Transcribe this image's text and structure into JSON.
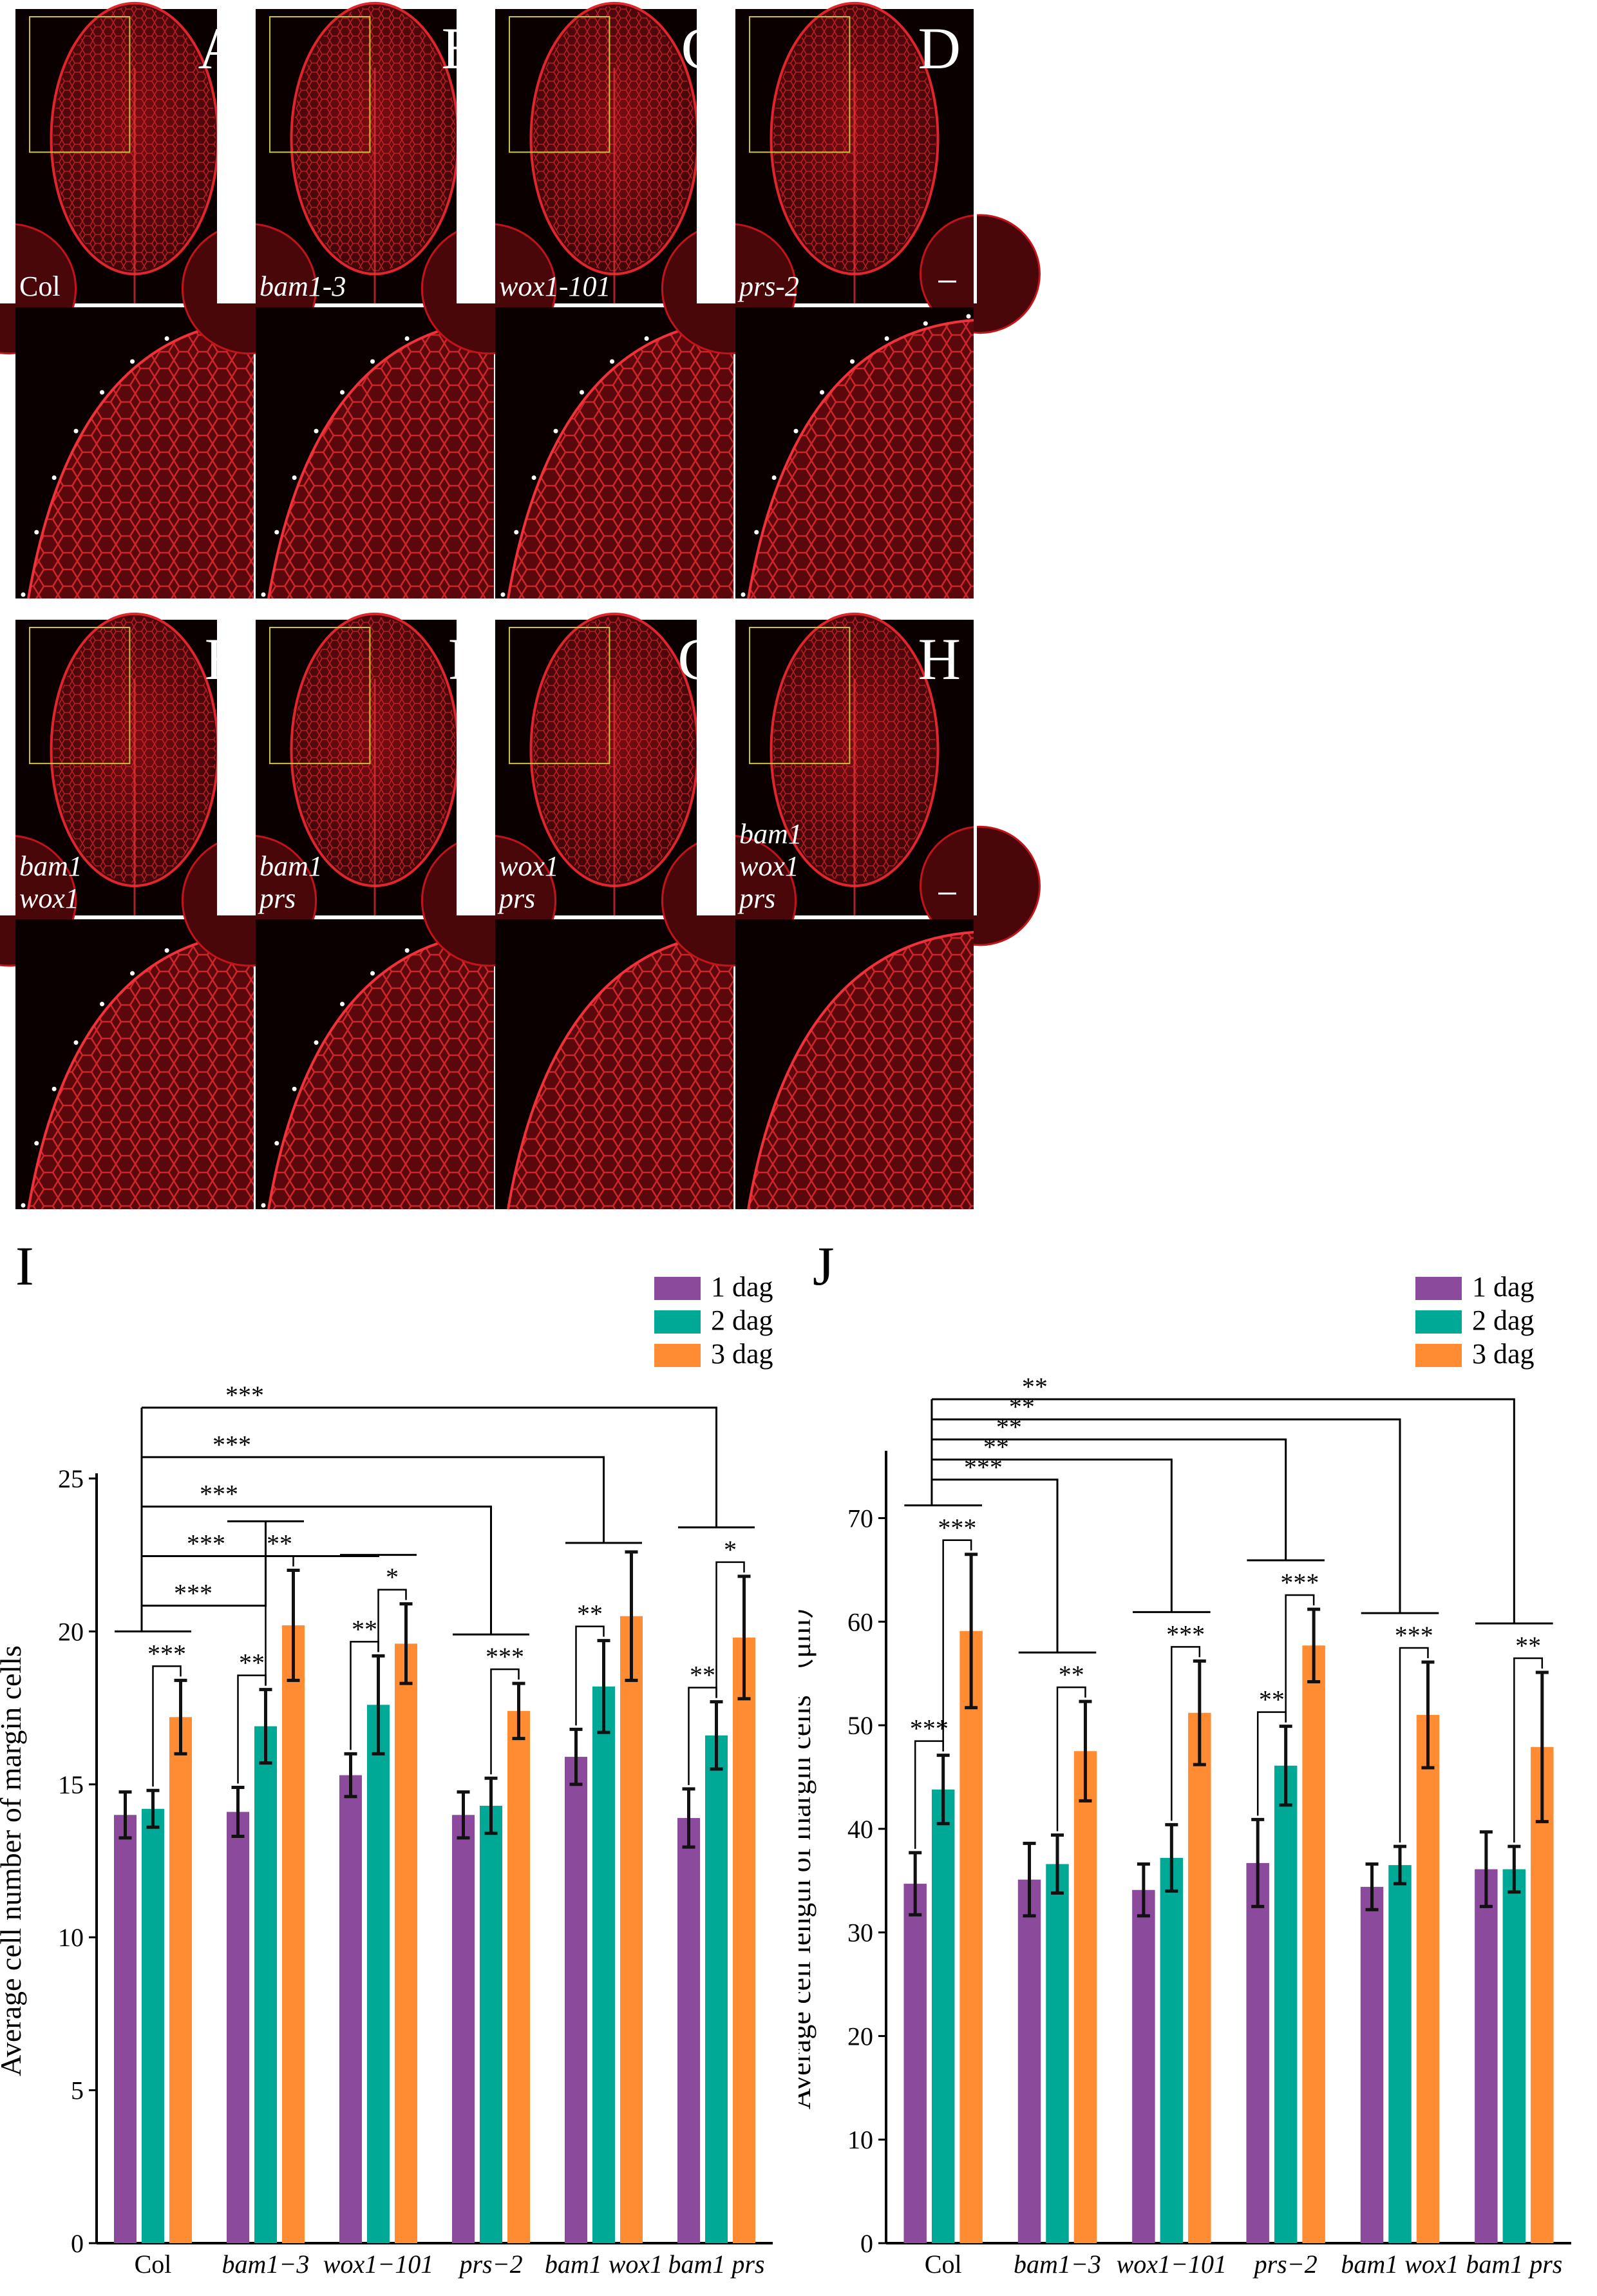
{
  "micrographs": {
    "top": [
      {
        "letter": "A",
        "label": "Col",
        "italic": false
      },
      {
        "letter": "B",
        "label": "bam1-3",
        "italic": true
      },
      {
        "letter": "C",
        "label": "wox1-101",
        "italic": true
      },
      {
        "letter": "D",
        "label": "prs-2",
        "italic": true
      }
    ],
    "bottom": [
      {
        "letter": "E",
        "lines": [
          "bam1",
          "wox1"
        ]
      },
      {
        "letter": "F",
        "lines": [
          "bam1",
          "prs"
        ]
      },
      {
        "letter": "G",
        "lines": [
          "wox1",
          "prs"
        ]
      },
      {
        "letter": "H",
        "lines": [
          "bam1",
          "wox1",
          "prs"
        ]
      }
    ]
  },
  "colors": {
    "day1": "#8b4a9c",
    "day2": "#00a896",
    "day3": "#ff8c32",
    "micro_bg": "#0b0000",
    "tissue": "#c0141a"
  },
  "chart_data": [
    {
      "panel": "I",
      "type": "bar",
      "ylabel": "Average cell number of margin cells",
      "ylim": [
        0,
        25
      ],
      "yticks": [
        0,
        5,
        10,
        15,
        20,
        25
      ],
      "categories": [
        "Col",
        "bam1−3",
        "wox1−101",
        "prs−2",
        "bam1 wox1",
        "bam1 prs"
      ],
      "series": [
        {
          "name": "1 dag",
          "values": [
            14.0,
            14.1,
            15.3,
            14.0,
            15.9,
            13.9
          ],
          "errors": [
            0.75,
            0.8,
            0.7,
            0.75,
            0.9,
            0.95
          ]
        },
        {
          "name": "2 dag",
          "values": [
            14.2,
            16.9,
            17.6,
            14.3,
            18.2,
            16.6
          ],
          "errors": [
            0.6,
            1.2,
            1.6,
            0.9,
            1.5,
            1.1
          ]
        },
        {
          "name": "3 dag",
          "values": [
            17.2,
            20.2,
            19.6,
            17.4,
            20.5,
            19.8
          ],
          "errors": [
            1.2,
            1.8,
            1.3,
            0.9,
            2.1,
            2.0
          ]
        }
      ],
      "within_marks": [
        {
          "cat": 0,
          "label": "***"
        },
        {
          "cat": 1,
          "label": "**",
          "inner": "**"
        },
        {
          "cat": 2,
          "label": "*",
          "inner": "**"
        },
        {
          "cat": 3,
          "label": "***"
        },
        {
          "cat": 4,
          "inner": "**"
        },
        {
          "cat": 5,
          "label": "*",
          "inner": "**"
        }
      ],
      "between": [
        {
          "to": 1,
          "label": "***"
        },
        {
          "to": 2,
          "label": "***"
        },
        {
          "to": 3,
          "label": "***"
        },
        {
          "to": 4,
          "label": "***"
        },
        {
          "to": 5,
          "label": "***"
        }
      ],
      "legend": [
        "1 dag",
        "2 dag",
        "3 dag"
      ]
    },
    {
      "panel": "J",
      "type": "bar",
      "ylabel": "Average cell length of margin cells （μm）",
      "ylim": [
        0,
        76
      ],
      "yticks": [
        0,
        10,
        20,
        30,
        40,
        50,
        60,
        70
      ],
      "categories": [
        "Col",
        "bam1−3",
        "wox1−101",
        "prs−2",
        "bam1 wox1",
        "bam1 prs"
      ],
      "series": [
        {
          "name": "1 dag",
          "values": [
            34.7,
            35.1,
            34.1,
            36.7,
            34.4,
            36.1
          ],
          "errors": [
            3.0,
            3.5,
            2.5,
            4.2,
            2.2,
            3.6
          ]
        },
        {
          "name": "2 dag",
          "values": [
            43.8,
            36.6,
            37.2,
            46.1,
            36.5,
            36.1
          ],
          "errors": [
            3.3,
            2.8,
            3.2,
            3.8,
            1.8,
            2.2
          ]
        },
        {
          "name": "3 dag",
          "values": [
            59.1,
            47.5,
            51.2,
            57.7,
            51.0,
            47.9
          ],
          "errors": [
            7.4,
            4.8,
            5.0,
            3.5,
            5.1,
            7.2
          ]
        }
      ],
      "within_marks": [
        {
          "cat": 0,
          "label": "***",
          "inner": "***"
        },
        {
          "cat": 1,
          "label": "**"
        },
        {
          "cat": 2,
          "label": "***"
        },
        {
          "cat": 3,
          "label": "***",
          "inner": "**"
        },
        {
          "cat": 4,
          "label": "***"
        },
        {
          "cat": 5,
          "label": "**"
        }
      ],
      "between": [
        {
          "to": 1,
          "label": "***"
        },
        {
          "to": 2,
          "label": "**"
        },
        {
          "to": 3,
          "label": "**"
        },
        {
          "to": 4,
          "label": "**"
        },
        {
          "to": 5,
          "label": "**"
        }
      ],
      "legend": [
        "1 dag",
        "2 dag",
        "3 dag"
      ]
    }
  ]
}
